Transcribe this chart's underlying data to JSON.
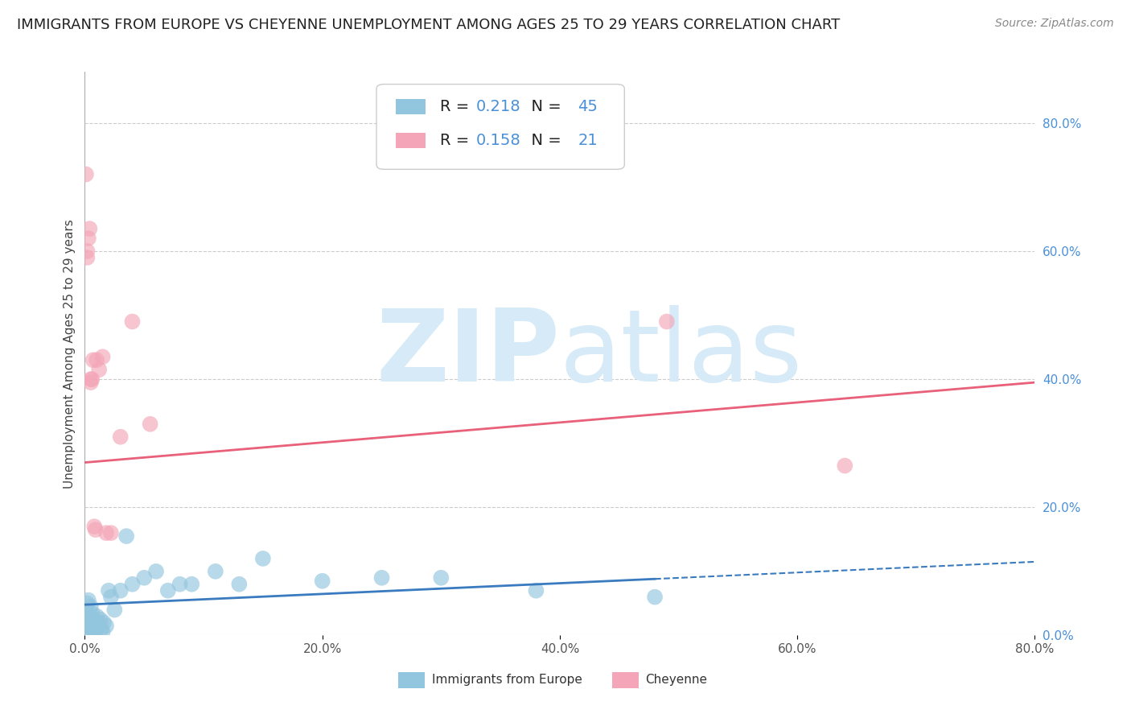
{
  "title": "IMMIGRANTS FROM EUROPE VS CHEYENNE UNEMPLOYMENT AMONG AGES 25 TO 29 YEARS CORRELATION CHART",
  "source": "Source: ZipAtlas.com",
  "ylabel": "Unemployment Among Ages 25 to 29 years",
  "xlim": [
    0.0,
    0.8
  ],
  "ylim": [
    0.0,
    0.88
  ],
  "xticks": [
    0.0,
    0.2,
    0.4,
    0.6,
    0.8
  ],
  "xtick_labels": [
    "0.0%",
    "20.0%",
    "40.0%",
    "60.0%",
    "80.0%"
  ],
  "yticks_right": [
    0.0,
    0.2,
    0.4,
    0.6,
    0.8
  ],
  "ytick_labels_right": [
    "0.0%",
    "20.0%",
    "40.0%",
    "60.0%",
    "80.0%"
  ],
  "blue_color": "#92c5de",
  "pink_color": "#f4a6b8",
  "blue_line_color": "#3a7bbf",
  "pink_line_color": "#e8607a",
  "right_axis_color": "#4a90d9",
  "R_blue": 0.218,
  "N_blue": 45,
  "R_pink": 0.158,
  "N_pink": 21,
  "legend_label_blue": "Immigrants from Europe",
  "legend_label_pink": "Cheyenne",
  "watermark_zip": "ZIP",
  "watermark_atlas": "atlas",
  "watermark_color": "#d6eaf8",
  "blue_scatter_x": [
    0.001,
    0.001,
    0.002,
    0.002,
    0.003,
    0.003,
    0.004,
    0.004,
    0.005,
    0.005,
    0.006,
    0.006,
    0.007,
    0.007,
    0.008,
    0.008,
    0.009,
    0.01,
    0.01,
    0.011,
    0.012,
    0.013,
    0.014,
    0.015,
    0.016,
    0.018,
    0.02,
    0.022,
    0.025,
    0.03,
    0.035,
    0.04,
    0.05,
    0.06,
    0.07,
    0.08,
    0.09,
    0.11,
    0.13,
    0.15,
    0.2,
    0.25,
    0.3,
    0.38,
    0.48
  ],
  "blue_scatter_y": [
    0.04,
    0.025,
    0.05,
    0.02,
    0.055,
    0.015,
    0.03,
    0.01,
    0.045,
    0.008,
    0.035,
    0.012,
    0.025,
    0.008,
    0.02,
    0.005,
    0.015,
    0.03,
    0.01,
    0.02,
    0.015,
    0.025,
    0.01,
    0.005,
    0.02,
    0.015,
    0.07,
    0.06,
    0.04,
    0.07,
    0.155,
    0.08,
    0.09,
    0.1,
    0.07,
    0.08,
    0.08,
    0.1,
    0.08,
    0.12,
    0.085,
    0.09,
    0.09,
    0.07,
    0.06
  ],
  "pink_scatter_x": [
    0.001,
    0.002,
    0.002,
    0.003,
    0.004,
    0.005,
    0.005,
    0.006,
    0.007,
    0.008,
    0.009,
    0.01,
    0.012,
    0.015,
    0.018,
    0.022,
    0.03,
    0.04,
    0.055,
    0.49,
    0.64
  ],
  "pink_scatter_y": [
    0.72,
    0.6,
    0.59,
    0.62,
    0.635,
    0.4,
    0.395,
    0.4,
    0.43,
    0.17,
    0.165,
    0.43,
    0.415,
    0.435,
    0.16,
    0.16,
    0.31,
    0.49,
    0.33,
    0.49,
    0.265
  ],
  "blue_trend_x": [
    0.0,
    0.8
  ],
  "blue_trend_y": [
    0.048,
    0.115
  ],
  "blue_trend_solid_end": 0.48,
  "pink_trend_x": [
    0.0,
    0.8
  ],
  "pink_trend_y": [
    0.27,
    0.395
  ],
  "title_fontsize": 13,
  "axis_label_fontsize": 11,
  "tick_fontsize": 11,
  "legend_fontsize": 14,
  "source_fontsize": 10
}
